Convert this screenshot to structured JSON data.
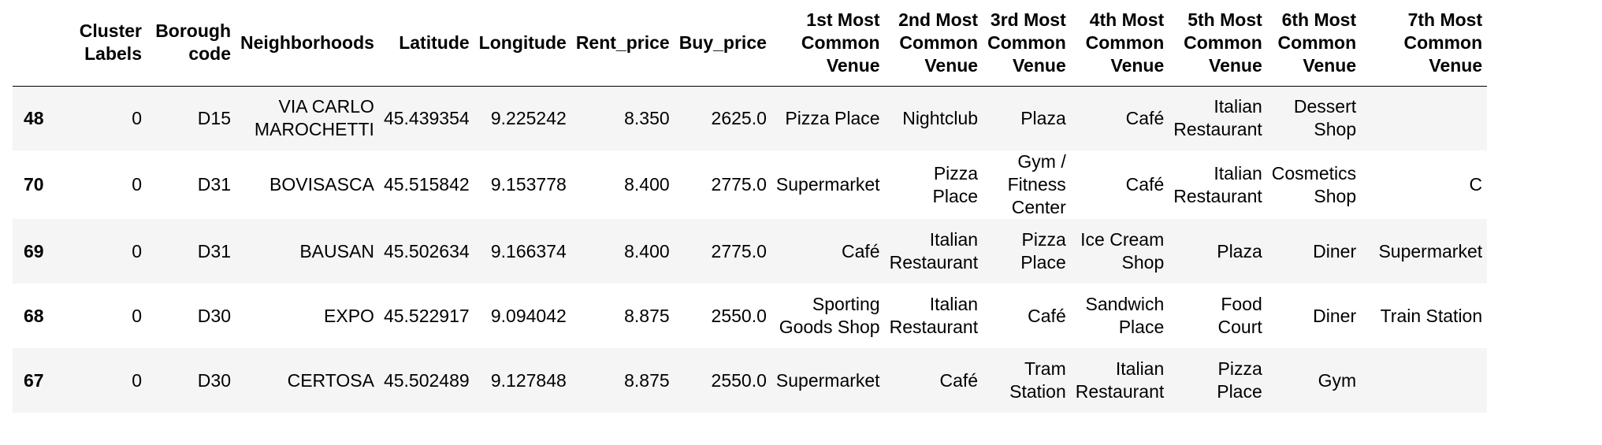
{
  "table": {
    "columns": [
      "",
      "Cluster Labels",
      "Borough code",
      "Neighborhoods",
      "Latitude",
      "Longitude",
      "Rent_price",
      "Buy_price",
      "1st Most Common Venue",
      "2nd Most Common Venue",
      "3rd Most Common Venue",
      "4th Most Common Venue",
      "5th Most Common Venue",
      "6th Most Common Venue",
      "7th Most Common Venue"
    ],
    "rows": [
      {
        "index": "48",
        "cells": [
          "0",
          "D15",
          "VIA CARLO MAROCHETTI",
          "45.439354",
          "9.225242",
          "8.350",
          "2625.0",
          "Pizza Place",
          "Nightclub",
          "Plaza",
          "Café",
          "Italian Restaurant",
          "Dessert Shop",
          ""
        ]
      },
      {
        "index": "70",
        "cells": [
          "0",
          "D31",
          "BOVISASCA",
          "45.515842",
          "9.153778",
          "8.400",
          "2775.0",
          "Supermarket",
          "Pizza Place",
          "Gym / Fitness Center",
          "Café",
          "Italian Restaurant",
          "Cosmetics Shop",
          "C"
        ]
      },
      {
        "index": "69",
        "cells": [
          "0",
          "D31",
          "BAUSAN",
          "45.502634",
          "9.166374",
          "8.400",
          "2775.0",
          "Café",
          "Italian Restaurant",
          "Pizza Place",
          "Ice Cream Shop",
          "Plaza",
          "Diner",
          "Supermarket"
        ]
      },
      {
        "index": "68",
        "cells": [
          "0",
          "D30",
          "EXPO",
          "45.522917",
          "9.094042",
          "8.875",
          "2550.0",
          "Sporting Goods Shop",
          "Italian Restaurant",
          "Café",
          "Sandwich Place",
          "Food Court",
          "Diner",
          "Train Station"
        ]
      },
      {
        "index": "67",
        "cells": [
          "0",
          "D30",
          "CERTOSA",
          "45.502489",
          "9.127848",
          "8.875",
          "2550.0",
          "Supermarket",
          "Café",
          "Tram Station",
          "Italian Restaurant",
          "Pizza Place",
          "Gym",
          ""
        ]
      }
    ]
  }
}
